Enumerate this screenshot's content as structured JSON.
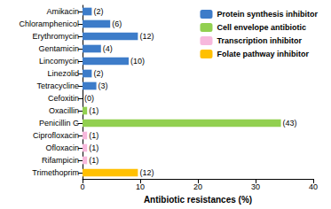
{
  "chart_data": {
    "type": "bar",
    "orientation": "horizontal",
    "stacked": true,
    "grid": false,
    "legend": "top-right",
    "xlabel": "Antibiotic resistances (%)",
    "xlim": [
      0,
      40
    ],
    "xticks": [
      0,
      10,
      20,
      30,
      40
    ],
    "categories": [
      "Amikacin",
      "Chloramphenicol",
      "Erythromycin",
      "Gentamicin",
      "Lincomycin",
      "Linezolid",
      "Tetracycline",
      "Cefoxitin",
      "Oxacillin",
      "Penicillin G",
      "Ciprofloxacin",
      "Ofloxacin",
      "Rifampicin",
      "Trimethoprim"
    ],
    "count_labels": [
      "(2)",
      "(6)",
      "(12)",
      "(4)",
      "(10)",
      "(2)",
      "(3)",
      "(0)",
      "(1)",
      "(43)",
      "(1)",
      "(1)",
      "(1)",
      "(12)"
    ],
    "series": [
      {
        "name": "Protein synthesis inhibitor",
        "color": "#3d7cc9",
        "values": [
          1.6,
          4.8,
          9.6,
          3.2,
          8,
          1.6,
          2.4,
          null,
          null,
          null,
          null,
          null,
          null,
          null
        ]
      },
      {
        "name": "Cell envelope antibiotic",
        "color": "#92d050",
        "values": [
          null,
          null,
          null,
          null,
          null,
          null,
          null,
          0,
          0.8,
          34.4,
          null,
          null,
          null,
          null
        ]
      },
      {
        "name": "Transcription inhibitor",
        "color": "#f7b8dc",
        "values": [
          null,
          null,
          null,
          null,
          null,
          null,
          null,
          null,
          null,
          null,
          0.8,
          0.8,
          0.8,
          null
        ]
      },
      {
        "name": "Folate pathway inhibitor",
        "color": "#ffc000",
        "values": [
          null,
          null,
          null,
          null,
          null,
          null,
          null,
          null,
          null,
          null,
          null,
          null,
          null,
          9.6
        ]
      }
    ]
  }
}
